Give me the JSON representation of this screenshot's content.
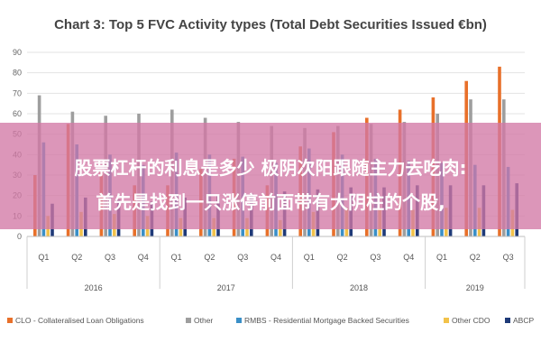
{
  "chart_data": {
    "type": "bar",
    "title": "Chart 3: Top 5 FVC Activity types (Total Debt Securities Issued €bn)",
    "xlabel": "",
    "ylabel": "",
    "ylim": [
      0,
      90
    ],
    "yticks": [
      "0",
      "10",
      "20",
      "30",
      "40",
      "50",
      "60",
      "70",
      "80",
      "90"
    ],
    "grid": true,
    "legend_position": "bottom",
    "categories": [
      "Q1",
      "Q2",
      "Q3",
      "Q4",
      "Q1",
      "Q2",
      "Q3",
      "Q4",
      "Q1",
      "Q2",
      "Q3",
      "Q4",
      "Q1",
      "Q2",
      "Q3"
    ],
    "groups": [
      {
        "label": "2016",
        "span": 4
      },
      {
        "label": "2017",
        "span": 4
      },
      {
        "label": "2018",
        "span": 4
      },
      {
        "label": "2019",
        "span": 3
      }
    ],
    "series": [
      {
        "name": "CLO - Collateralised Loan Obligations",
        "color": "#e8702a",
        "values": [
          30,
          55,
          32,
          25,
          25,
          33,
          38,
          25,
          44,
          51,
          58,
          62,
          68,
          76,
          83
        ]
      },
      {
        "name": "Other",
        "color": "#9e9e9e",
        "values": [
          69,
          61,
          59,
          60,
          62,
          58,
          56,
          54,
          53,
          54,
          55,
          56,
          60,
          67,
          67
        ]
      },
      {
        "name": "RMBS - Residential Mortgage Backed Securities",
        "color": "#3a8fc7",
        "values": [
          46,
          45,
          40,
          35,
          41,
          40,
          39,
          36,
          43,
          40,
          38,
          37,
          36,
          35,
          34
        ]
      },
      {
        "name": "Other CDO",
        "color": "#f2c24a",
        "values": [
          10,
          12,
          11,
          10,
          9,
          9,
          9,
          8,
          12,
          14,
          14,
          13,
          14,
          14,
          13
        ]
      },
      {
        "name": "ABCP",
        "color": "#1f3a78",
        "values": [
          16,
          19,
          18,
          17,
          19,
          20,
          21,
          22,
          23,
          24,
          24,
          25,
          25,
          25,
          26
        ]
      }
    ]
  },
  "overlay": {
    "line1": "股票杠杆的利息是多少 极阴次阳跟随主力去吃肉:",
    "line2": "首先是找到一只涨停前面带有大阴柱的个股,"
  }
}
